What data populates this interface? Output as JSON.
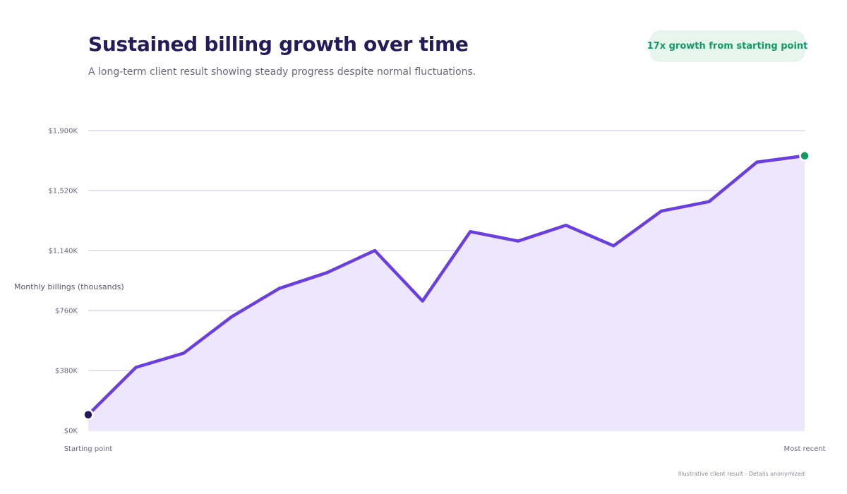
{
  "header": {
    "title": "Sustained billing growth over time",
    "subtitle": "A long-term client result showing steady progress despite normal fluctuations.",
    "badge": "17x growth from starting point"
  },
  "footnote": "Illustrative client result - Details anonymized",
  "colors": {
    "line": "#6a3ee0",
    "area": "#ece7fd",
    "grid": "#d9d6e6",
    "start_marker": "#231b5c",
    "end_marker": "#119a62"
  },
  "chart_data": {
    "type": "area",
    "title": "Sustained billing growth over time",
    "ylabel": "Monthly billings (thousands)",
    "xlabel": "",
    "ylim": [
      0,
      1900
    ],
    "y_ticks": [
      0,
      380,
      760,
      1140,
      1520,
      1900
    ],
    "y_tick_labels": [
      "$0K",
      "$380K",
      "$760K",
      "$1,140K",
      "$1,520K",
      "$1,900K"
    ],
    "x_labels": [
      "Starting point",
      "Most recent"
    ],
    "grid": true,
    "series": [
      {
        "values": [
          100,
          400,
          490,
          720,
          900,
          1000,
          1140,
          820,
          1260,
          1200,
          1300,
          1170,
          1390,
          1450,
          1700,
          1740
        ]
      }
    ]
  }
}
